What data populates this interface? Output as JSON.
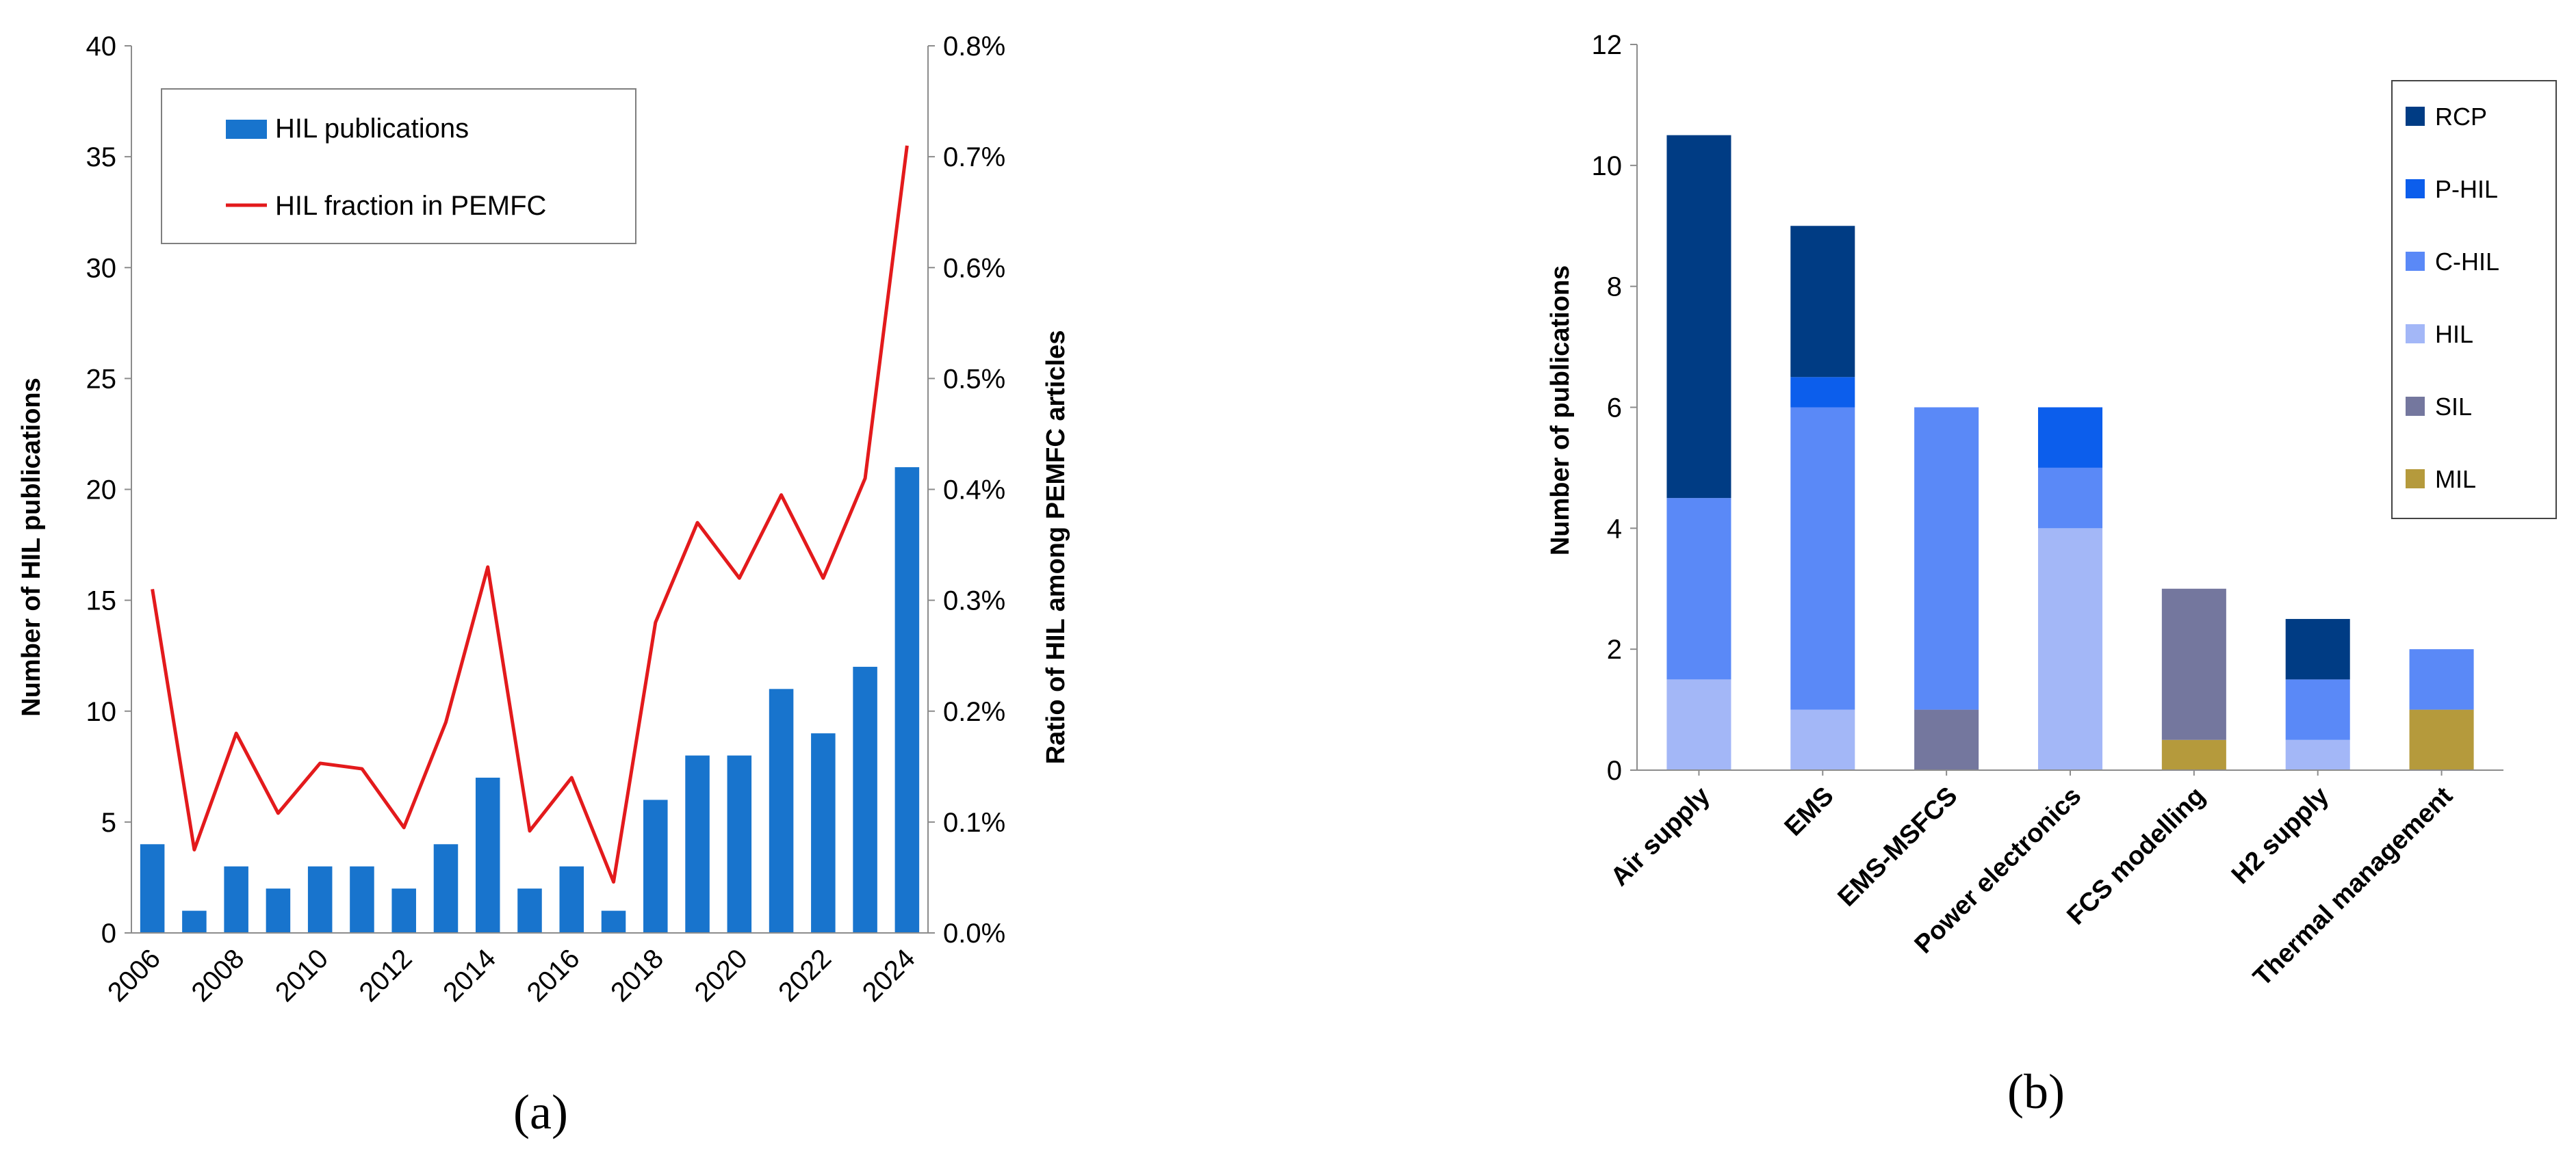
{
  "chart_data": [
    {
      "type": "bar",
      "panel_label": "(a)",
      "categories": [
        "2006",
        "2007",
        "2008",
        "2009",
        "2010",
        "2011",
        "2012",
        "2013",
        "2014",
        "2015",
        "2016",
        "2017",
        "2018",
        "2019",
        "2020",
        "2021",
        "2022",
        "2023",
        "2024"
      ],
      "x_tick_labels": [
        "2006",
        "2008",
        "2010",
        "2012",
        "2014",
        "2016",
        "2018",
        "2020",
        "2022",
        "2024"
      ],
      "series": [
        {
          "name": "HIL publications",
          "kind": "bar",
          "axis": "left",
          "color": "#1874CD",
          "values": [
            4,
            1,
            3,
            2,
            3,
            3,
            2,
            4,
            7,
            2,
            3,
            1,
            6,
            8,
            8,
            11,
            9,
            12,
            21
          ]
        },
        {
          "name": "HIL fraction in PEMFC",
          "kind": "line",
          "axis": "right",
          "color": "#E31A1C",
          "values": [
            0.31,
            0.075,
            0.18,
            0.108,
            0.153,
            0.148,
            0.095,
            0.19,
            0.33,
            0.092,
            0.14,
            0.046,
            0.28,
            0.37,
            0.32,
            0.395,
            0.32,
            0.41,
            0.71
          ]
        }
      ],
      "ylabel": "Number of HIL publications",
      "ylim": [
        0,
        40
      ],
      "yticks": [
        "0",
        "5",
        "10",
        "15",
        "20",
        "25",
        "30",
        "35",
        "40"
      ],
      "y2label": "Ratio of HIL among PEMFC articles",
      "y2lim": [
        0,
        0.8
      ],
      "y2ticks": [
        "0.0%",
        "0.1%",
        "0.2%",
        "0.3%",
        "0.4%",
        "0.5%",
        "0.6%",
        "0.7%",
        "0.8%"
      ],
      "legend": "top-left",
      "grid": false
    },
    {
      "type": "bar",
      "stacked": true,
      "panel_label": "(b)",
      "categories": [
        "Air supply",
        "EMS",
        "EMS-MSFCS",
        "Power electronics",
        "FCS modelling",
        "H2 supply",
        "Thermal management"
      ],
      "series": [
        {
          "name": "MIL",
          "color": "#B59A3C",
          "values": [
            0,
            0,
            0,
            0,
            0.5,
            0,
            1
          ]
        },
        {
          "name": "SIL",
          "color": "#74779E",
          "values": [
            0,
            0,
            1,
            0,
            2.5,
            0,
            0
          ]
        },
        {
          "name": "HIL",
          "color": "#A3B7F7",
          "values": [
            1.5,
            1,
            0,
            4,
            0,
            0.5,
            0
          ]
        },
        {
          "name": "C-HIL",
          "color": "#5A89F7",
          "values": [
            3,
            5,
            5,
            1,
            0,
            1,
            1
          ]
        },
        {
          "name": "P-HIL",
          "color": "#0C5EEC",
          "values": [
            0,
            0.5,
            0,
            1,
            0,
            0,
            0
          ]
        },
        {
          "name": "RCP",
          "color": "#003C84",
          "values": [
            6,
            2.5,
            0,
            0,
            0,
            1,
            0
          ]
        }
      ],
      "legend_order": [
        "RCP",
        "P-HIL",
        "C-HIL",
        "HIL",
        "SIL",
        "MIL"
      ],
      "ylabel": "Number of publications",
      "ylim": [
        0,
        12
      ],
      "yticks": [
        "0",
        "2",
        "4",
        "6",
        "8",
        "10",
        "12"
      ],
      "legend": "top-right",
      "grid": false
    }
  ]
}
